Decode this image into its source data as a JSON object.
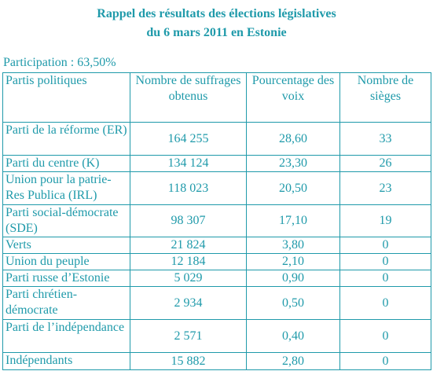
{
  "header": {
    "title_lines": [
      "Rappel des résultats des élections législatives",
      "du 6 mars 2011 en Estonie"
    ]
  },
  "participation": "Participation : 63,50%",
  "table": {
    "columns": [
      "Partis politiques",
      "Nombre de suffrages obtenus",
      "Pourcentage des voix",
      "Nombre de sièges"
    ],
    "rows": [
      [
        "Parti de la réforme (ER)",
        "164 255",
        "28,60",
        "33"
      ],
      [
        "Parti du centre (K)",
        "134 124",
        "23,30",
        "26"
      ],
      [
        "Union pour la patrie-Res Publica (IRL)",
        "118 023",
        "20,50",
        "23"
      ],
      [
        "Parti social-démocrate (SDE)",
        "98 307",
        "17,10",
        "19"
      ],
      [
        "Verts",
        "21 824",
        "3,80",
        "0"
      ],
      [
        "Union du peuple",
        "12 184",
        "2,10",
        "0"
      ],
      [
        "Parti russe d’Estonie",
        "5 029",
        "0,90",
        "0"
      ],
      [
        "Parti chrétien-démocrate",
        "2 934",
        "0,50",
        "0"
      ],
      [
        "Parti de l’indépendance",
        "2 571",
        "0,40",
        "0"
      ],
      [
        "Indépendants",
        "15 882",
        "2,80",
        "0"
      ]
    ]
  }
}
